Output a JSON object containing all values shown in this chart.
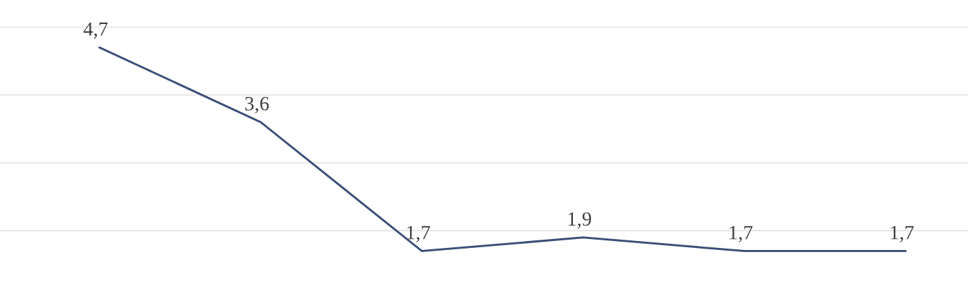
{
  "chart_data": {
    "type": "line",
    "categories": [
      null,
      null,
      null,
      null,
      null,
      null
    ],
    "series": [
      {
        "color": "#3e5078",
        "values": [
          4.7,
          3.6,
          1.7,
          1.9,
          1.7,
          1.7
        ],
        "value_labels": [
          "4,7",
          "3,6",
          "1,7",
          "1,9",
          "1,7",
          "1,7"
        ]
      }
    ],
    "ylim": [
      1.2,
      5.4
    ],
    "yticks": [
      {
        "value": 2,
        "label": null
      },
      {
        "value": 3,
        "label": null
      },
      {
        "value": 4,
        "label": null
      },
      {
        "value": 5,
        "label": null
      }
    ],
    "grid": "y",
    "marker": "none",
    "line_style": "solid",
    "legend": false
  }
}
